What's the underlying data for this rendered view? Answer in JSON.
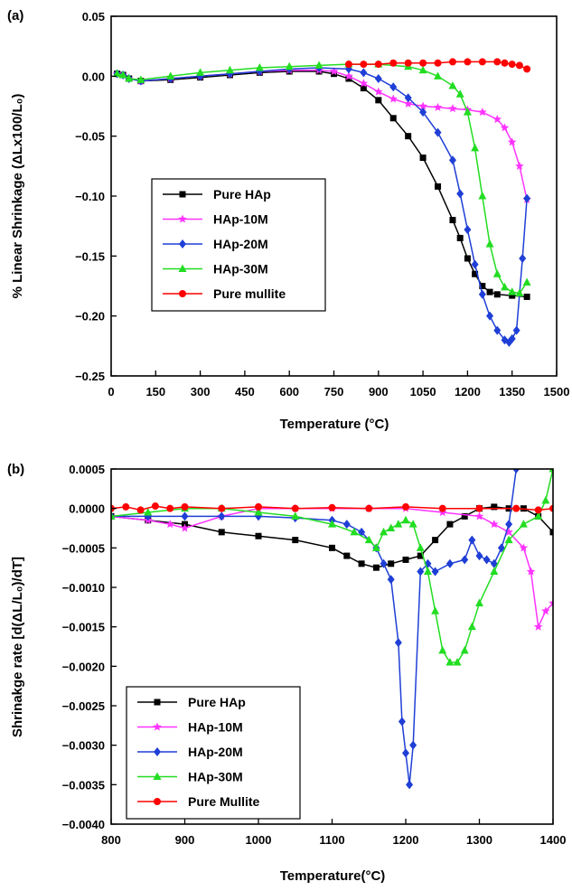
{
  "chart_data": [
    {
      "type": "line",
      "panel_label": "(a)",
      "xlabel": "Temperature (°C)",
      "ylabel": "% Linear Shrinkage (ΔLx100/L₀)",
      "xlim": [
        0,
        1500
      ],
      "ylim": [
        -0.25,
        0.05
      ],
      "xticks": [
        0,
        150,
        300,
        450,
        600,
        750,
        900,
        1050,
        1200,
        1350,
        1500
      ],
      "yticks": [
        0.05,
        0.0,
        -0.05,
        -0.1,
        -0.15,
        -0.2,
        -0.25
      ],
      "ytick_labels": [
        "0.05",
        "0.00",
        "−0.05",
        "−0.10",
        "−0.15",
        "−0.20",
        "−0.25"
      ],
      "legend_position": "middle-left",
      "series": [
        {
          "name": "Pure HAp",
          "color": "#000000",
          "marker": "square",
          "x": [
            20,
            40,
            60,
            100,
            200,
            300,
            400,
            500,
            600,
            700,
            750,
            800,
            850,
            900,
            950,
            1000,
            1050,
            1100,
            1150,
            1175,
            1200,
            1225,
            1250,
            1275,
            1300,
            1350,
            1400
          ],
          "y": [
            0.002,
            0.001,
            -0.002,
            -0.004,
            -0.003,
            -0.001,
            0.001,
            0.003,
            0.004,
            0.004,
            0.002,
            -0.002,
            -0.01,
            -0.02,
            -0.035,
            -0.05,
            -0.068,
            -0.092,
            -0.12,
            -0.135,
            -0.152,
            -0.165,
            -0.175,
            -0.18,
            -0.182,
            -0.183,
            -0.184
          ]
        },
        {
          "name": "HAp-10M",
          "color": "#ff33ff",
          "marker": "star",
          "x": [
            20,
            40,
            60,
            100,
            200,
            300,
            400,
            500,
            600,
            700,
            750,
            800,
            850,
            900,
            950,
            1000,
            1050,
            1100,
            1150,
            1200,
            1250,
            1300,
            1325,
            1350,
            1375,
            1400
          ],
          "y": [
            0.002,
            0.001,
            -0.002,
            -0.004,
            -0.002,
            0.0,
            0.002,
            0.004,
            0.005,
            0.005,
            0.004,
            0.0,
            -0.006,
            -0.013,
            -0.019,
            -0.023,
            -0.025,
            -0.026,
            -0.027,
            -0.028,
            -0.03,
            -0.036,
            -0.043,
            -0.055,
            -0.075,
            -0.103
          ]
        },
        {
          "name": "HAp-20M",
          "color": "#1f3fd6",
          "marker": "diamond",
          "x": [
            20,
            40,
            60,
            100,
            200,
            300,
            400,
            500,
            600,
            700,
            800,
            850,
            900,
            950,
            1000,
            1050,
            1100,
            1150,
            1175,
            1200,
            1225,
            1250,
            1275,
            1300,
            1325,
            1340,
            1350,
            1365,
            1385,
            1400
          ],
          "y": [
            0.002,
            0.001,
            -0.002,
            -0.004,
            -0.002,
            0.0,
            0.002,
            0.004,
            0.006,
            0.007,
            0.006,
            0.003,
            -0.002,
            -0.009,
            -0.018,
            -0.03,
            -0.047,
            -0.07,
            -0.098,
            -0.128,
            -0.157,
            -0.182,
            -0.2,
            -0.212,
            -0.22,
            -0.222,
            -0.219,
            -0.212,
            -0.152,
            -0.102
          ]
        },
        {
          "name": "HAp-30M",
          "color": "#22dd22",
          "marker": "triangle",
          "x": [
            20,
            40,
            60,
            100,
            200,
            300,
            400,
            500,
            600,
            700,
            800,
            900,
            1000,
            1050,
            1100,
            1150,
            1175,
            1200,
            1225,
            1250,
            1275,
            1300,
            1325,
            1350,
            1375,
            1400
          ],
          "y": [
            0.002,
            0.001,
            -0.002,
            -0.003,
            0.0,
            0.003,
            0.005,
            0.007,
            0.008,
            0.009,
            0.01,
            0.01,
            0.008,
            0.005,
            0.0,
            -0.008,
            -0.015,
            -0.03,
            -0.06,
            -0.1,
            -0.14,
            -0.165,
            -0.176,
            -0.18,
            -0.181,
            -0.172
          ]
        },
        {
          "name": "Pure mullite",
          "color": "#ff0000",
          "marker": "circle",
          "x": [
            800,
            850,
            900,
            950,
            1000,
            1050,
            1100,
            1150,
            1200,
            1250,
            1300,
            1325,
            1350,
            1375,
            1400
          ],
          "y": [
            0.01,
            0.01,
            0.01,
            0.011,
            0.011,
            0.011,
            0.011,
            0.012,
            0.012,
            0.012,
            0.012,
            0.011,
            0.01,
            0.009,
            0.006
          ]
        }
      ]
    },
    {
      "type": "line",
      "panel_label": "(b)",
      "xlabel": "Temperature(°C)",
      "ylabel": "Shrinakge rate [d(ΔL/L₀)/dT]",
      "xlim": [
        800,
        1400
      ],
      "ylim": [
        -0.004,
        0.0005
      ],
      "xticks": [
        800,
        900,
        1000,
        1100,
        1200,
        1300,
        1400
      ],
      "yticks": [
        0.0005,
        0.0,
        -0.0005,
        -0.001,
        -0.0015,
        -0.002,
        -0.0025,
        -0.003,
        -0.0035,
        -0.004
      ],
      "ytick_labels": [
        "0.0005",
        "0.0000",
        "−0.0005",
        "−0.0010",
        "−0.0015",
        "−0.0020",
        "−0.0025",
        "−0.0030",
        "−0.0035",
        "−0.0040"
      ],
      "legend_position": "bottom-left",
      "series": [
        {
          "name": "Pure HAp",
          "color": "#000000",
          "marker": "square",
          "x": [
            800,
            850,
            900,
            950,
            1000,
            1050,
            1100,
            1120,
            1140,
            1160,
            1180,
            1200,
            1220,
            1240,
            1260,
            1280,
            1300,
            1320,
            1340,
            1360,
            1380,
            1400
          ],
          "y": [
            -0.0001,
            -0.00015,
            -0.0002,
            -0.0003,
            -0.00035,
            -0.0004,
            -0.0005,
            -0.0006,
            -0.0007,
            -0.00075,
            -0.0007,
            -0.00065,
            -0.0006,
            -0.0004,
            -0.0002,
            -0.0001,
            0.0,
            2e-05,
            0.0,
            0.0,
            -0.0001,
            -0.0003
          ]
        },
        {
          "name": "HAp-10M",
          "color": "#ff33ff",
          "marker": "star",
          "x": [
            800,
            850,
            880,
            900,
            950,
            1000,
            1050,
            1100,
            1150,
            1200,
            1250,
            1300,
            1320,
            1340,
            1360,
            1370,
            1380,
            1390,
            1400
          ],
          "y": [
            -0.0001,
            -0.00015,
            -0.0002,
            -0.00025,
            -0.0001,
            0.0,
            0.0,
            0.0,
            0.0,
            0.0,
            -5e-05,
            -0.0001,
            -0.0002,
            -0.0003,
            -0.0005,
            -0.0008,
            -0.0015,
            -0.0013,
            -0.0012
          ]
        },
        {
          "name": "HAp-20M",
          "color": "#1f3fd6",
          "marker": "diamond",
          "x": [
            800,
            850,
            900,
            950,
            1000,
            1050,
            1100,
            1120,
            1140,
            1160,
            1170,
            1180,
            1190,
            1195,
            1200,
            1205,
            1210,
            1220,
            1230,
            1240,
            1260,
            1280,
            1290,
            1300,
            1310,
            1320,
            1330,
            1340,
            1350
          ],
          "y": [
            -0.0001,
            -0.0001,
            -0.0001,
            -0.0001,
            -0.0001,
            -0.00012,
            -0.00015,
            -0.0002,
            -0.0003,
            -0.0005,
            -0.0007,
            -0.0009,
            -0.0017,
            -0.0027,
            -0.0031,
            -0.0035,
            -0.003,
            -0.0008,
            -0.0007,
            -0.0008,
            -0.0007,
            -0.00065,
            -0.0004,
            -0.0006,
            -0.00065,
            -0.0007,
            -0.0005,
            -0.0002,
            0.0005
          ]
        },
        {
          "name": "HAp-30M",
          "color": "#22dd22",
          "marker": "triangle",
          "x": [
            800,
            850,
            900,
            950,
            1000,
            1050,
            1100,
            1130,
            1150,
            1160,
            1170,
            1180,
            1190,
            1200,
            1210,
            1220,
            1230,
            1240,
            1250,
            1260,
            1270,
            1280,
            1290,
            1300,
            1320,
            1340,
            1360,
            1380,
            1390,
            1400
          ],
          "y": [
            -0.0001,
            -5e-05,
            0.0,
            0.0,
            -5e-05,
            -0.0001,
            -0.0002,
            -0.0003,
            -0.0004,
            -0.0005,
            -0.0003,
            -0.00025,
            -0.0002,
            -0.00015,
            -0.0002,
            -0.0005,
            -0.0008,
            -0.0013,
            -0.0018,
            -0.00195,
            -0.00195,
            -0.0018,
            -0.0015,
            -0.0012,
            -0.0008,
            -0.0004,
            -0.0002,
            -0.0001,
            0.0001,
            0.0005
          ]
        },
        {
          "name": "Pure Mullite",
          "color": "#ff0000",
          "marker": "circle",
          "x": [
            800,
            820,
            840,
            860,
            880,
            900,
            950,
            1000,
            1050,
            1100,
            1150,
            1200,
            1250,
            1300,
            1350,
            1380,
            1400
          ],
          "y": [
            0.0,
            2e-05,
            -2e-05,
            3e-05,
            0.0,
            2e-05,
            0.0,
            2e-05,
            0.0,
            1e-05,
            0.0,
            2e-05,
            0.0,
            0.0,
            0.0,
            -2e-05,
            0.0
          ]
        }
      ]
    }
  ]
}
